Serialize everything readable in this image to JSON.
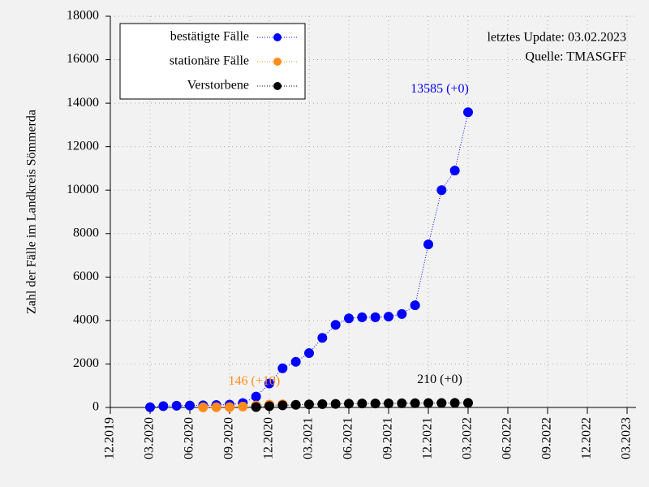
{
  "chart_data": {
    "type": "line",
    "y_label": "Zahl der Fälle im Landkreis Sömmerda",
    "info": [
      "letztes Update: 03.02.2023",
      "Quelle: TMASGFF"
    ],
    "x": [
      "03.2020",
      "04.2020",
      "05.2020",
      "06.2020",
      "07.2020",
      "08.2020",
      "09.2020",
      "10.2020",
      "11.2020",
      "12.2020",
      "01.2021",
      "02.2021",
      "03.2021",
      "04.2021",
      "05.2021",
      "06.2021",
      "07.2021",
      "08.2021",
      "09.2021",
      "10.2021",
      "11.2021",
      "12.2021",
      "01.2022",
      "02.2022",
      "03.2022"
    ],
    "series": [
      {
        "name": "bestätigte Fälle",
        "color": "#0000ff",
        "annotation": "13585 (+0)",
        "values": [
          10,
          60,
          80,
          90,
          100,
          110,
          130,
          200,
          500,
          1100,
          1800,
          2100,
          2500,
          3200,
          3800,
          4100,
          4150,
          4150,
          4180,
          4300,
          4700,
          7500,
          10000,
          10900,
          13585
        ]
      },
      {
        "name": "stationäre Fälle",
        "color": "#ff8c1a",
        "annotation": "146 (+10)",
        "values": [
          null,
          null,
          null,
          null,
          5,
          10,
          15,
          40,
          90,
          130,
          146,
          null,
          null,
          null,
          null,
          null,
          null,
          null,
          null,
          null,
          null,
          null,
          null,
          null,
          null
        ]
      },
      {
        "name": "Verstorbene",
        "color": "#000000",
        "annotation": "210 (+0)",
        "values": [
          null,
          null,
          null,
          null,
          null,
          null,
          null,
          null,
          20,
          60,
          100,
          120,
          140,
          155,
          165,
          175,
          180,
          182,
          185,
          190,
          195,
          200,
          205,
          208,
          210
        ]
      }
    ],
    "xlim": [
      "12.2019",
      "03.2023"
    ],
    "xticks": [
      "12.2019",
      "03.2020",
      "06.2020",
      "09.2020",
      "12.2020",
      "03.2021",
      "06.2021",
      "09.2021",
      "12.2021",
      "03.2022",
      "06.2022",
      "09.2022",
      "12.2022",
      "03.2023"
    ],
    "ylim": [
      0,
      18000
    ],
    "yticks": [
      0,
      2000,
      4000,
      6000,
      8000,
      10000,
      12000,
      14000,
      16000,
      18000
    ],
    "grid": true,
    "legend": "upper left"
  }
}
